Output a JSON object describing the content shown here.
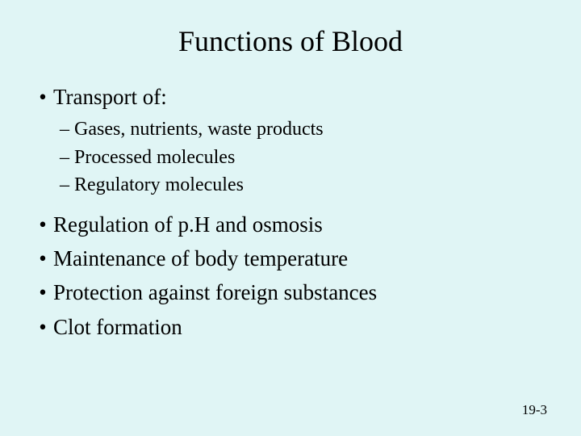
{
  "background_color": "#e0f5f5",
  "text_color": "#000000",
  "font_family": "Times New Roman",
  "title": {
    "text": "Functions of Blood",
    "fontsize": 36
  },
  "body_fontsize": 27,
  "sub_fontsize": 24,
  "bullets": {
    "b1": {
      "text": "Transport of:",
      "sub": [
        "Gases, nutrients, waste products",
        "Processed molecules",
        "Regulatory molecules"
      ]
    },
    "b2": {
      "text": "Regulation of p.H and osmosis"
    },
    "b3": {
      "text": "Maintenance of body temperature"
    },
    "b4": {
      "text": "Protection against foreign substances"
    },
    "b5": {
      "text": "Clot formation"
    }
  },
  "footer": {
    "text": "19-3",
    "fontsize": 17
  }
}
